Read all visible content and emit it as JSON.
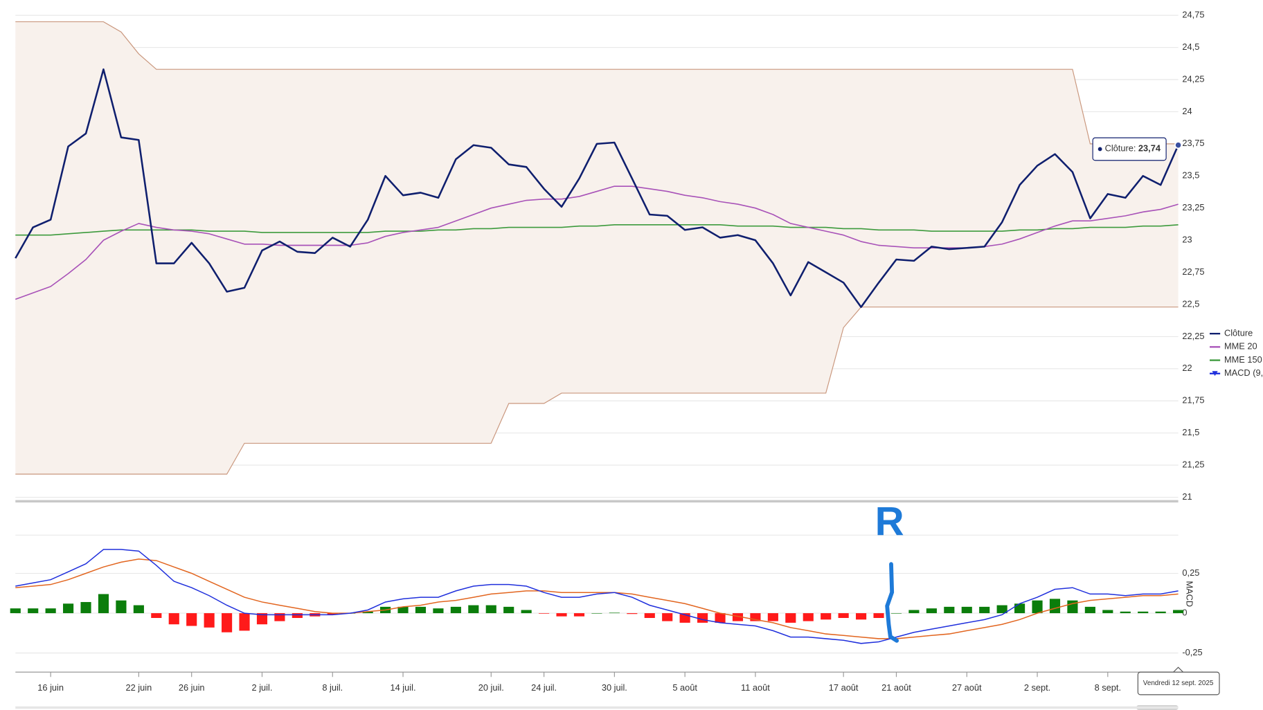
{
  "chart_data": [
    {
      "type": "line",
      "categories": [
        null,
        null,
        "16 juin",
        null,
        null,
        null,
        null,
        "22 juin",
        null,
        null,
        "26 juin",
        null,
        null,
        null,
        "2 juil.",
        null,
        null,
        null,
        "8 juil.",
        null,
        null,
        null,
        "14 juil.",
        null,
        null,
        null,
        null,
        "20 juil.",
        null,
        null,
        "24 juil.",
        null,
        null,
        null,
        "30 juil.",
        null,
        null,
        null,
        "5 août",
        null,
        null,
        null,
        "11 août",
        null,
        null,
        null,
        null,
        "17 août",
        null,
        null,
        "21 août",
        null,
        null,
        null,
        "27 août",
        null,
        null,
        null,
        "2 sept.",
        null,
        null,
        null,
        "8 sept.",
        null,
        null,
        null,
        null
      ],
      "series": [
        {
          "name": "Clôture",
          "color": "#0f1f6e",
          "values": [
            22.86,
            23.1,
            23.16,
            23.73,
            23.83,
            24.33,
            23.8,
            23.78,
            22.82,
            22.82,
            22.98,
            22.82,
            22.6,
            22.63,
            22.92,
            22.99,
            22.91,
            22.9,
            23.02,
            22.95,
            23.16,
            23.5,
            23.35,
            23.37,
            23.33,
            23.63,
            23.74,
            23.72,
            23.59,
            23.57,
            23.4,
            23.26,
            23.48,
            23.75,
            23.76,
            23.48,
            23.2,
            23.19,
            23.08,
            23.1,
            23.02,
            23.04,
            23.0,
            22.82,
            22.57,
            22.83,
            22.75,
            22.67,
            22.48,
            22.67,
            22.85,
            22.84,
            22.95,
            22.93,
            22.94,
            22.95,
            23.14,
            23.43,
            23.58,
            23.67,
            23.53,
            23.17,
            23.36,
            23.33,
            23.5,
            23.43,
            23.74
          ]
        },
        {
          "name": "MME 20",
          "color": "#a852b8",
          "values": [
            22.54,
            22.59,
            22.64,
            22.74,
            22.85,
            23.0,
            23.07,
            23.13,
            23.1,
            23.08,
            23.07,
            23.05,
            23.01,
            22.97,
            22.97,
            22.96,
            22.96,
            22.96,
            22.96,
            22.96,
            22.98,
            23.03,
            23.06,
            23.08,
            23.1,
            23.15,
            23.2,
            23.25,
            23.28,
            23.31,
            23.32,
            23.32,
            23.34,
            23.38,
            23.42,
            23.42,
            23.4,
            23.38,
            23.35,
            23.33,
            23.3,
            23.28,
            23.25,
            23.2,
            23.13,
            23.1,
            23.07,
            23.04,
            22.99,
            22.96,
            22.95,
            22.94,
            22.94,
            22.94,
            22.94,
            22.95,
            22.97,
            23.01,
            23.06,
            23.11,
            23.15,
            23.15,
            23.17,
            23.19,
            23.22,
            23.24,
            23.28
          ]
        },
        {
          "name": "MME 150",
          "color": "#3c9a3c",
          "values": [
            23.04,
            23.04,
            23.04,
            23.05,
            23.06,
            23.07,
            23.08,
            23.08,
            23.08,
            23.08,
            23.08,
            23.07,
            23.07,
            23.07,
            23.06,
            23.06,
            23.06,
            23.06,
            23.06,
            23.06,
            23.06,
            23.07,
            23.07,
            23.07,
            23.08,
            23.08,
            23.09,
            23.09,
            23.1,
            23.1,
            23.1,
            23.1,
            23.11,
            23.11,
            23.12,
            23.12,
            23.12,
            23.12,
            23.12,
            23.12,
            23.12,
            23.11,
            23.11,
            23.11,
            23.1,
            23.1,
            23.1,
            23.09,
            23.09,
            23.08,
            23.08,
            23.08,
            23.07,
            23.07,
            23.07,
            23.07,
            23.07,
            23.08,
            23.08,
            23.09,
            23.09,
            23.1,
            23.1,
            23.1,
            23.11,
            23.11,
            23.12
          ]
        }
      ],
      "band": {
        "color": "#c9967c",
        "fill": "#f8f1ec",
        "upper": [
          24.7,
          24.7,
          24.7,
          24.7,
          24.7,
          24.7,
          24.62,
          24.45,
          24.33,
          24.33,
          24.33,
          24.33,
          24.33,
          24.33,
          24.33,
          24.33,
          24.33,
          24.33,
          24.33,
          24.33,
          24.33,
          24.33,
          24.33,
          24.33,
          24.33,
          24.33,
          24.33,
          24.33,
          24.33,
          24.33,
          24.33,
          24.33,
          24.33,
          24.33,
          24.33,
          24.33,
          24.33,
          24.33,
          24.33,
          24.33,
          24.33,
          24.33,
          24.33,
          24.33,
          24.33,
          24.33,
          24.33,
          24.33,
          24.33,
          24.33,
          24.33,
          24.33,
          24.33,
          24.33,
          24.33,
          24.33,
          24.33,
          24.33,
          24.33,
          24.33,
          24.33,
          23.75,
          23.75,
          23.75,
          23.75,
          23.75,
          23.75
        ],
        "lower": [
          21.18,
          21.18,
          21.18,
          21.18,
          21.18,
          21.18,
          21.18,
          21.18,
          21.18,
          21.18,
          21.18,
          21.18,
          21.18,
          21.42,
          21.42,
          21.42,
          21.42,
          21.42,
          21.42,
          21.42,
          21.42,
          21.42,
          21.42,
          21.42,
          21.42,
          21.42,
          21.42,
          21.42,
          21.73,
          21.73,
          21.73,
          21.81,
          21.81,
          21.81,
          21.81,
          21.81,
          21.81,
          21.81,
          21.81,
          21.81,
          21.81,
          21.81,
          21.81,
          21.81,
          21.81,
          21.81,
          21.81,
          22.32,
          22.48,
          22.48,
          22.48,
          22.48,
          22.48,
          22.48,
          22.48,
          22.48,
          22.48,
          22.48,
          22.48,
          22.48,
          22.48,
          22.48,
          22.48,
          22.48,
          22.48,
          22.48,
          22.48
        ]
      },
      "ylim": [
        21,
        24.75
      ],
      "yticks": [
        21,
        {
          "value": 21.25,
          "label": "21,25"
        },
        {
          "value": 21.5,
          "label": "21,5"
        },
        {
          "value": 21.75,
          "label": "21,75"
        },
        22,
        {
          "value": 22.25,
          "label": "22,25"
        },
        {
          "value": 22.5,
          "label": "22,5"
        },
        {
          "value": 22.75,
          "label": "22,75"
        },
        23,
        {
          "value": 23.25,
          "label": "23,25"
        },
        {
          "value": 23.5,
          "label": "23,5"
        },
        {
          "value": 23.75,
          "label": "23,75"
        },
        24,
        {
          "value": 24.25,
          "label": "24,25"
        },
        {
          "value": 24.5,
          "label": "24,5"
        },
        {
          "value": 24.75,
          "label": "24,75"
        }
      ],
      "grid": true,
      "legend": "right",
      "tooltip": {
        "label": "Clôture:",
        "text": "23,74"
      }
    },
    {
      "type": "macd",
      "name": "MACD (9,",
      "axis_label": "MACD",
      "macd": {
        "color": "#1f2fdc",
        "values": [
          0.17,
          0.19,
          0.21,
          0.26,
          0.31,
          0.4,
          0.4,
          0.39,
          0.3,
          0.2,
          0.16,
          0.11,
          0.05,
          0.0,
          -0.01,
          -0.01,
          -0.01,
          -0.01,
          -0.01,
          0.0,
          0.02,
          0.07,
          0.09,
          0.1,
          0.1,
          0.14,
          0.17,
          0.18,
          0.18,
          0.17,
          0.13,
          0.1,
          0.1,
          0.12,
          0.13,
          0.1,
          0.05,
          0.02,
          -0.01,
          -0.04,
          -0.06,
          -0.07,
          -0.08,
          -0.11,
          -0.15,
          -0.15,
          -0.16,
          -0.17,
          -0.19,
          -0.18,
          -0.15,
          -0.12,
          -0.1,
          -0.08,
          -0.06,
          -0.04,
          -0.01,
          0.06,
          0.1,
          0.15,
          0.16,
          0.12,
          0.12,
          0.11,
          0.12,
          0.12,
          0.14
        ]
      },
      "signal": {
        "color": "#e2651f",
        "values": [
          0.16,
          0.17,
          0.18,
          0.21,
          0.25,
          0.29,
          0.32,
          0.34,
          0.33,
          0.29,
          0.25,
          0.2,
          0.15,
          0.1,
          0.07,
          0.05,
          0.03,
          0.01,
          0.0,
          0.0,
          0.01,
          0.02,
          0.04,
          0.05,
          0.07,
          0.08,
          0.1,
          0.12,
          0.13,
          0.14,
          0.14,
          0.13,
          0.13,
          0.13,
          0.13,
          0.12,
          0.1,
          0.08,
          0.06,
          0.03,
          0.0,
          -0.02,
          -0.04,
          -0.06,
          -0.09,
          -0.11,
          -0.13,
          -0.14,
          -0.15,
          -0.16,
          -0.16,
          -0.15,
          -0.14,
          -0.13,
          -0.11,
          -0.09,
          -0.07,
          -0.04,
          0.0,
          0.03,
          0.06,
          0.08,
          0.09,
          0.1,
          0.11,
          0.11,
          0.12
        ]
      },
      "histogram": {
        "positive_color": "#0b7d0b",
        "negative_color": "#ff1a1a",
        "values": [
          0.03,
          0.03,
          0.03,
          0.06,
          0.07,
          0.12,
          0.08,
          0.05,
          -0.03,
          -0.07,
          -0.08,
          -0.09,
          -0.12,
          -0.11,
          -0.07,
          -0.05,
          -0.03,
          -0.02,
          -0.01,
          0.0,
          0.01,
          0.04,
          0.04,
          0.04,
          0.03,
          0.04,
          0.05,
          0.05,
          0.04,
          0.02,
          -0.003,
          -0.02,
          -0.02,
          0.0,
          0.003,
          -0.005,
          -0.03,
          -0.05,
          -0.06,
          -0.06,
          -0.06,
          -0.05,
          -0.05,
          -0.05,
          -0.06,
          -0.05,
          -0.04,
          -0.03,
          -0.04,
          -0.03,
          0.0,
          0.02,
          0.03,
          0.04,
          0.04,
          0.04,
          0.05,
          0.06,
          0.08,
          0.09,
          0.08,
          0.04,
          0.02,
          0.01,
          0.01,
          0.01,
          0.02
        ]
      },
      "ylim": [
        -0.37,
        0.49
      ],
      "yticks": [
        {
          "value": -0.25,
          "label": "-0,25"
        },
        0,
        {
          "value": 0.25,
          "label": "0,25"
        }
      ],
      "grid": true,
      "annotation": "R",
      "crosshair_label": "Vendredi 12 sept. 2025"
    }
  ]
}
